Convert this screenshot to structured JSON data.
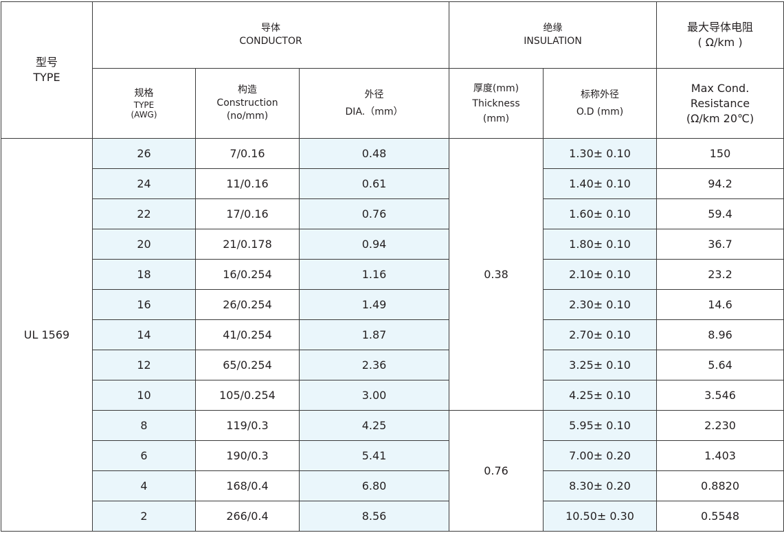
{
  "header": {
    "type_cn": "型号",
    "type_en": "TYPE",
    "conductor_cn": "导体",
    "conductor_en": "CONDUCTOR",
    "insulation_cn": "绝缘",
    "insulation_en": "INSULATION",
    "resistance_cn": "最大导体电阻",
    "resistance_unit": "( Ω/km )",
    "awg_cn": "规格",
    "awg_en": "TYPE",
    "awg_unit": "(AWG)",
    "construction_cn": "构造",
    "construction_en": "Construction",
    "construction_unit": "(no/mm)",
    "dia_cn": "外径",
    "dia_en": "DIA.（mm）",
    "thickness_cn": "厚度(mm)",
    "thickness_en": "Thickness",
    "thickness_unit": "(mm)",
    "od_cn": "标称外径",
    "od_en": "O.D (mm)",
    "res_en1": "Max Cond.",
    "res_en2": "Resistance",
    "res_en3": "(Ω/km 20℃)"
  },
  "model": "UL 1569",
  "thickness_groups": [
    "0.38",
    "0.76"
  ],
  "rows": [
    {
      "awg": "26",
      "construction": "7/0.16",
      "dia": "0.48",
      "od": "1.30± 0.10",
      "res": "150"
    },
    {
      "awg": "24",
      "construction": "11/0.16",
      "dia": "0.61",
      "od": "1.40± 0.10",
      "res": "94.2"
    },
    {
      "awg": "22",
      "construction": "17/0.16",
      "dia": "0.76",
      "od": "1.60± 0.10",
      "res": "59.4"
    },
    {
      "awg": "20",
      "construction": "21/0.178",
      "dia": "0.94",
      "od": "1.80± 0.10",
      "res": "36.7"
    },
    {
      "awg": "18",
      "construction": "16/0.254",
      "dia": "1.16",
      "od": "2.10± 0.10",
      "res": "23.2"
    },
    {
      "awg": "16",
      "construction": "26/0.254",
      "dia": "1.49",
      "od": "2.30± 0.10",
      "res": "14.6"
    },
    {
      "awg": "14",
      "construction": "41/0.254",
      "dia": "1.87",
      "od": "2.70± 0.10",
      "res": "8.96"
    },
    {
      "awg": "12",
      "construction": "65/0.254",
      "dia": "2.36",
      "od": "3.25± 0.10",
      "res": "5.64"
    },
    {
      "awg": "10",
      "construction": "105/0.254",
      "dia": "3.00",
      "od": "4.25± 0.10",
      "res": "3.546"
    },
    {
      "awg": "8",
      "construction": "119/0.3",
      "dia": "4.25",
      "od": "5.95± 0.10",
      "res": "2.230"
    },
    {
      "awg": "6",
      "construction": "190/0.3",
      "dia": "5.41",
      "od": "7.00± 0.20",
      "res": "1.403"
    },
    {
      "awg": "4",
      "construction": "168/0.4",
      "dia": "6.80",
      "od": "8.30± 0.20",
      "res": "0.8820"
    },
    {
      "awg": "2",
      "construction": "266/0.4",
      "dia": "8.56",
      "od": "10.50± 0.30",
      "res": "0.5548"
    }
  ]
}
